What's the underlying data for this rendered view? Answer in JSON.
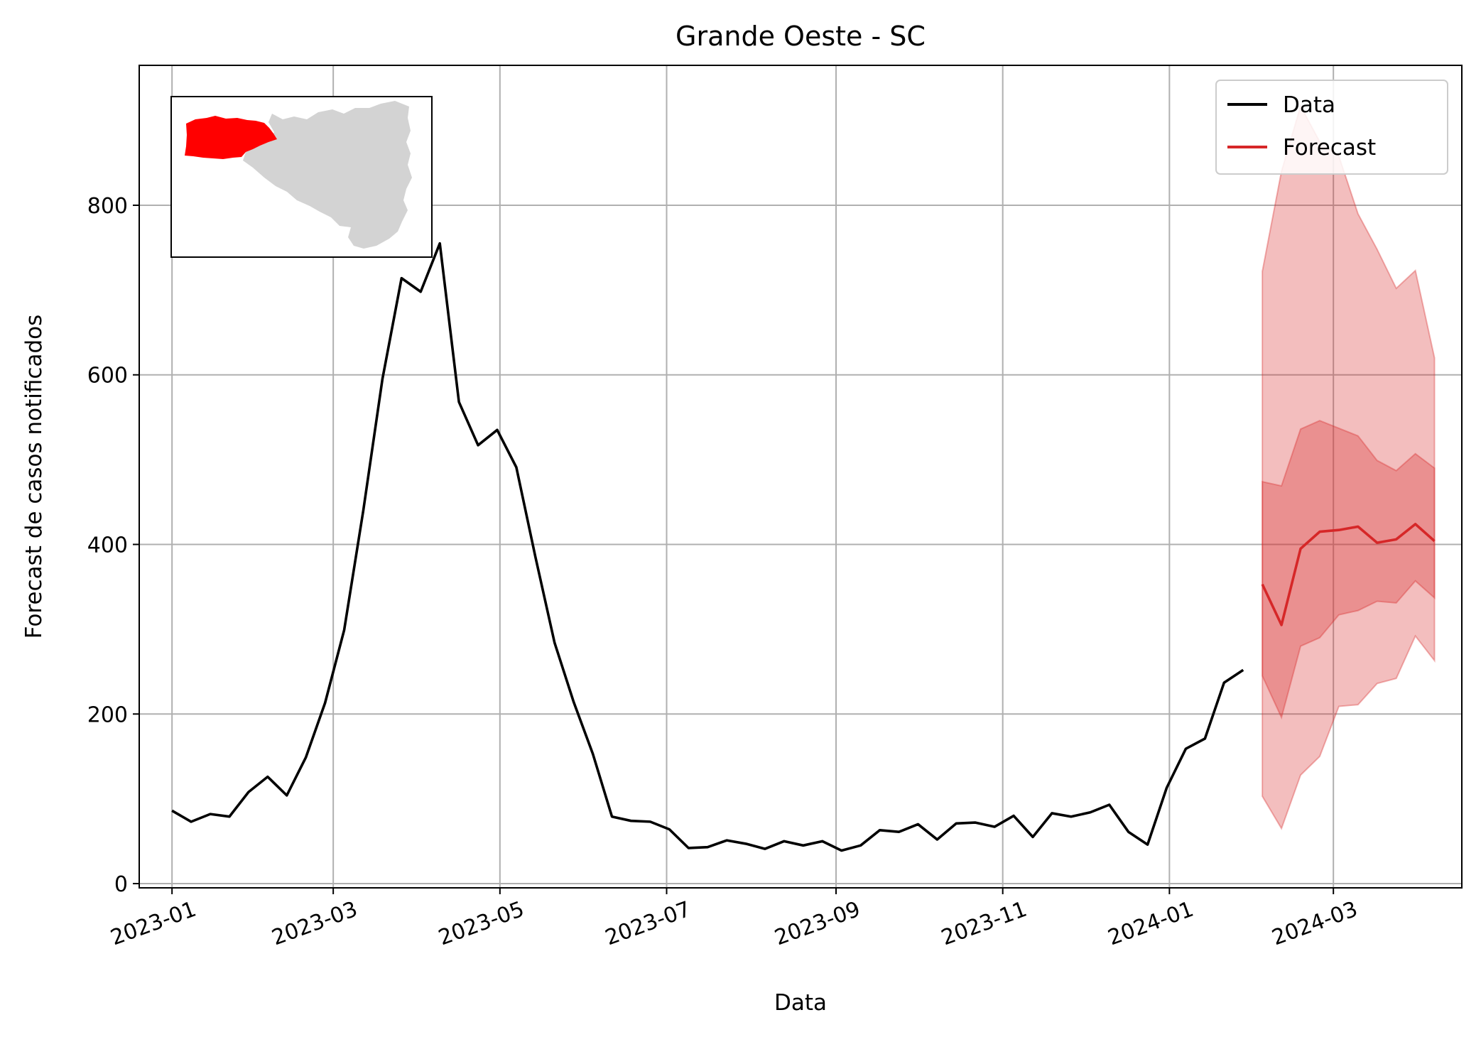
{
  "chart_data": {
    "type": "line",
    "title": "Grande Oeste - SC",
    "xlabel": "Data",
    "ylabel": "Forecast de casos notificados",
    "xlim": [
      "2022-12-20",
      "2024-04-17"
    ],
    "ylim": [
      -5,
      965
    ],
    "xticks": [
      "2023-01-01",
      "2023-03-01",
      "2023-05-01",
      "2023-07-01",
      "2023-09-01",
      "2023-11-01",
      "2024-01-01",
      "2024-03-01"
    ],
    "xtick_labels": [
      "2023-01",
      "2023-03",
      "2023-05",
      "2023-07",
      "2023-09",
      "2023-11",
      "2024-01",
      "2024-03"
    ],
    "yticks": [
      0,
      200,
      400,
      600,
      800
    ],
    "ytick_labels": [
      "0",
      "200",
      "400",
      "600",
      "800"
    ],
    "grid": true,
    "legend_position": "top-right",
    "legend": [
      {
        "label": "Data",
        "color": "#000000"
      },
      {
        "label": "Forecast",
        "color": "#d62728"
      }
    ],
    "data_series": {
      "name": "Data",
      "color": "#000000",
      "x": [
        "2023-01-01",
        "2023-01-08",
        "2023-01-15",
        "2023-01-22",
        "2023-01-29",
        "2023-02-05",
        "2023-02-12",
        "2023-02-19",
        "2023-02-26",
        "2023-03-05",
        "2023-03-12",
        "2023-03-19",
        "2023-03-26",
        "2023-04-02",
        "2023-04-09",
        "2023-04-16",
        "2023-04-23",
        "2023-04-30",
        "2023-05-07",
        "2023-05-14",
        "2023-05-21",
        "2023-05-28",
        "2023-06-04",
        "2023-06-11",
        "2023-06-18",
        "2023-06-25",
        "2023-07-02",
        "2023-07-09",
        "2023-07-16",
        "2023-07-23",
        "2023-07-30",
        "2023-08-06",
        "2023-08-13",
        "2023-08-20",
        "2023-08-27",
        "2023-09-03",
        "2023-09-10",
        "2023-09-17",
        "2023-09-24",
        "2023-10-01",
        "2023-10-08",
        "2023-10-15",
        "2023-10-22",
        "2023-10-29",
        "2023-11-05",
        "2023-11-12",
        "2023-11-19",
        "2023-11-26",
        "2023-12-03",
        "2023-12-10",
        "2023-12-17",
        "2023-12-24",
        "2023-12-31",
        "2024-01-07",
        "2024-01-14",
        "2024-01-21",
        "2024-01-28"
      ],
      "y": [
        86,
        73,
        82,
        79,
        108,
        126,
        104,
        149,
        213,
        299,
        440,
        595,
        714,
        698,
        755,
        568,
        517,
        535,
        491,
        385,
        284,
        214,
        153,
        79,
        74,
        73,
        64,
        42,
        43,
        51,
        47,
        41,
        50,
        45,
        50,
        39,
        45,
        63,
        61,
        70,
        52,
        71,
        72,
        67,
        80,
        55,
        83,
        79,
        84,
        93,
        61,
        46,
        113,
        159,
        171,
        237,
        252
      ]
    },
    "forecast_series": {
      "name": "Forecast",
      "color": "#d62728",
      "x": [
        "2024-02-04",
        "2024-02-11",
        "2024-02-18",
        "2024-02-25",
        "2024-03-03",
        "2024-03-10",
        "2024-03-17",
        "2024-03-24",
        "2024-03-31",
        "2024-04-07"
      ],
      "median": [
        353,
        305,
        395,
        415,
        417,
        421,
        402,
        406,
        424,
        404
      ],
      "inner_lower": [
        245,
        196,
        280,
        290,
        317,
        322,
        333,
        331,
        357,
        337
      ],
      "inner_upper": [
        474,
        469,
        536,
        546,
        537,
        528,
        499,
        487,
        507,
        490
      ],
      "outer_lower": [
        103,
        65,
        128,
        150,
        209,
        211,
        236,
        242,
        292,
        263
      ],
      "outer_upper": [
        722,
        840,
        917,
        875,
        858,
        790,
        748,
        702,
        723,
        620
      ],
      "band_color": "#d62728"
    },
    "inset": {
      "map": "Santa Catarina",
      "highlight_color": "#ff0000",
      "base_color": "#d3d3d3"
    }
  }
}
